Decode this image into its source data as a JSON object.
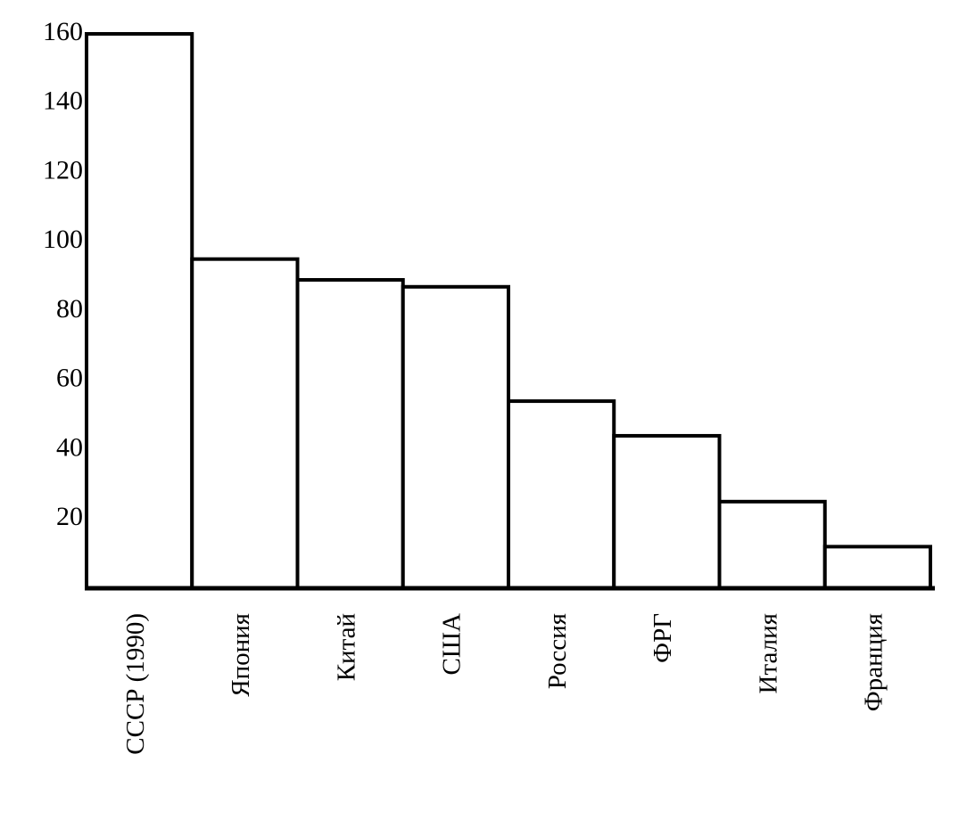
{
  "chart_data": {
    "type": "bar",
    "categories": [
      "СССР (1990)",
      "Япония",
      "Китай",
      "США",
      "Россия",
      "ФРГ",
      "Италия",
      "Франция"
    ],
    "values": [
      160,
      95,
      89,
      87,
      54,
      44,
      25,
      12
    ],
    "color": "#ffffff",
    "ylim": [
      0,
      160
    ],
    "yticks": [
      20,
      40,
      60,
      80,
      100,
      120,
      140,
      160
    ],
    "grid": false
  }
}
